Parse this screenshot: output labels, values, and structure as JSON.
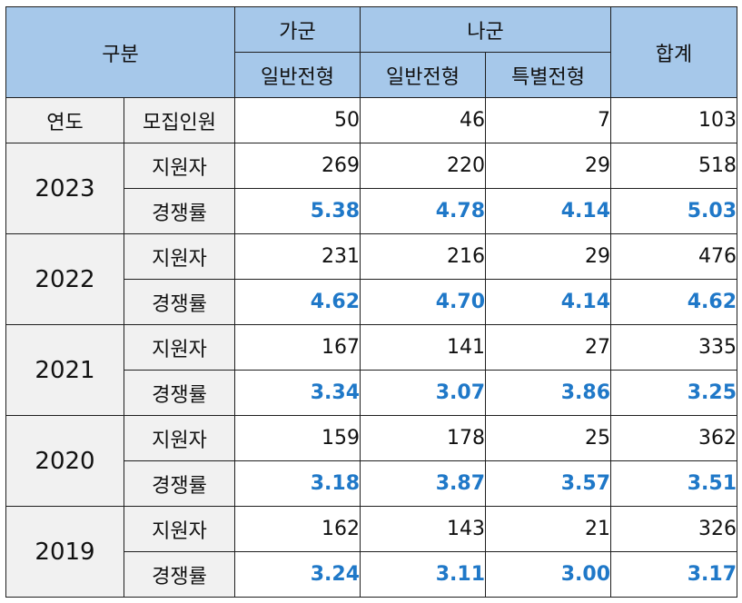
{
  "header": {
    "category": "구분",
    "group_ga": "가군",
    "group_na": "나군",
    "total": "합계",
    "ga_general": "일반전형",
    "na_general": "일반전형",
    "na_special": "특별전형"
  },
  "quota_row": {
    "year_label": "연도",
    "label": "모집인원",
    "values": [
      "50",
      "46",
      "7",
      "103"
    ]
  },
  "years": [
    {
      "year": "2023",
      "applicants_label": "지원자",
      "applicants": [
        "269",
        "220",
        "29",
        "518"
      ],
      "rate_label": "경쟁률",
      "rates": [
        "5.38",
        "4.78",
        "4.14",
        "5.03"
      ]
    },
    {
      "year": "2022",
      "applicants_label": "지원자",
      "applicants": [
        "231",
        "216",
        "29",
        "476"
      ],
      "rate_label": "경쟁률",
      "rates": [
        "4.62",
        "4.70",
        "4.14",
        "4.62"
      ]
    },
    {
      "year": "2021",
      "applicants_label": "지원자",
      "applicants": [
        "167",
        "141",
        "27",
        "335"
      ],
      "rate_label": "경쟁률",
      "rates": [
        "3.34",
        "3.07",
        "3.86",
        "3.25"
      ]
    },
    {
      "year": "2020",
      "applicants_label": "지원자",
      "applicants": [
        "159",
        "178",
        "25",
        "362"
      ],
      "rate_label": "경쟁률",
      "rates": [
        "3.18",
        "3.87",
        "3.57",
        "3.51"
      ]
    },
    {
      "year": "2019",
      "applicants_label": "지원자",
      "applicants": [
        "162",
        "143",
        "21",
        "326"
      ],
      "rate_label": "경쟁률",
      "rates": [
        "3.24",
        "3.11",
        "3.00",
        "3.17"
      ]
    }
  ],
  "colors": {
    "header_bg": "#a6c8ea",
    "label_bg": "#f1f1f1",
    "rate_text": "#1f78c8"
  }
}
